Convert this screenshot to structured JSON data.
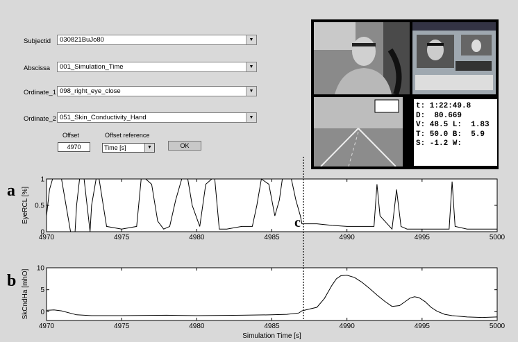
{
  "form": {
    "subjectid": {
      "label": "Subjectid",
      "value": "030821BuJo80"
    },
    "abscissa": {
      "label": "Abscissa",
      "value": "001_Simulation_Time"
    },
    "ordinate1": {
      "label": "Ordinate_1",
      "value": "098_right_eye_close"
    },
    "ordinate2": {
      "label": "Ordinate_2",
      "value": "051_Skin_Conductivity_Hand"
    },
    "offset_label": "Offset",
    "offset_value": "4970",
    "offset_reference_label": "Offset reference",
    "offset_reference_value": "Time [s]",
    "ok_label": "OK"
  },
  "video": {
    "hud_lines": [
      "t: 1:22:49.8",
      "D:  80.669",
      "V: 48.5 L:  1.83",
      "T: 50.0 B:  5.9",
      "S: -1.2 W:"
    ]
  },
  "panel_letters": {
    "a": "a",
    "b": "b",
    "c": "c"
  },
  "chart_data": [
    {
      "type": "line",
      "ylabel": "EyeRCL [%]",
      "xlim": [
        4970,
        5000
      ],
      "ylim": [
        0,
        1
      ],
      "yticks": [
        "0",
        "0.5",
        "1"
      ],
      "xticks": [
        "4970",
        "4975",
        "4980",
        "4985",
        "4990",
        "4995",
        "5000"
      ],
      "series": [
        {
          "x": [
            4970,
            4970.2,
            4970.4,
            4970.6,
            4971,
            4971.6,
            4971.9,
            4972,
            4972.2,
            4972.5,
            4972.9,
            4973,
            4973.3,
            4973.5,
            4974,
            4975,
            4976,
            4976.3,
            4976.6,
            4977,
            4977.4,
            4977.8,
            4978.2,
            4978.6,
            4979,
            4979.4,
            4979.7,
            4980.2,
            4980.6,
            4981,
            4981.2,
            4981.5,
            4982,
            4983,
            4983.7,
            4984,
            4984.3,
            4984.8,
            4985.2,
            4985.5,
            4985.7,
            4986,
            4986.3,
            4986.6,
            4986.9,
            4987,
            4988,
            4989,
            4990,
            4991,
            4991.8,
            4992,
            4992.2,
            4993,
            4993.3,
            4993.6,
            4994,
            4995,
            4996,
            4996.8,
            4997,
            4997.2,
            4998,
            4999,
            5000
          ],
          "y": [
            0.3,
            0.8,
            1,
            1,
            1,
            0,
            0,
            0.5,
            1,
            1,
            0,
            0.5,
            1,
            1,
            0.1,
            0.05,
            0.1,
            1,
            1,
            0.9,
            0.2,
            0.05,
            0.1,
            0.6,
            1,
            1,
            0.5,
            0.1,
            0.9,
            1,
            1,
            0.05,
            0.05,
            0.1,
            0.1,
            0.5,
            1,
            0.9,
            0.3,
            0.6,
            1,
            1,
            1,
            0.6,
            0.3,
            0.15,
            0.15,
            0.12,
            0.1,
            0.1,
            0.1,
            0.9,
            0.3,
            0.05,
            0.8,
            0.1,
            0.05,
            0.05,
            0.05,
            0.05,
            0.95,
            0.1,
            0.05,
            0.05,
            0.05
          ]
        }
      ]
    },
    {
      "type": "line",
      "ylabel": "SkCndHa [mhO]",
      "xlabel": "Simulation Time [s]",
      "xlim": [
        4970,
        5000
      ],
      "ylim": [
        -2,
        10
      ],
      "yticks": [
        "0",
        "5",
        "10"
      ],
      "xticks": [
        "4970",
        "4975",
        "4980",
        "4985",
        "4990",
        "4995",
        "5000"
      ],
      "series": [
        {
          "x": [
            4970,
            4970.5,
            4971,
            4972,
            4973,
            4975,
            4978,
            4980,
            4983,
            4985,
            4986,
            4986.8,
            4987,
            4987.5,
            4988,
            4988.5,
            4989,
            4989.3,
            4989.6,
            4990,
            4990.5,
            4991,
            4991.5,
            4992,
            4992.5,
            4993,
            4993.5,
            4994,
            4994.2,
            4994.5,
            4994.8,
            4995.2,
            4995.6,
            4996,
            4996.5,
            4997,
            4998,
            4999,
            5000
          ],
          "y": [
            0.3,
            0.4,
            0.2,
            -0.7,
            -0.9,
            -0.9,
            -0.8,
            -0.9,
            -0.8,
            -0.7,
            -0.6,
            -0.3,
            0.2,
            0.6,
            1,
            3,
            6,
            7.5,
            8.2,
            8.3,
            7.8,
            6.7,
            5.3,
            3.8,
            2.4,
            1.2,
            1.4,
            2.6,
            3.1,
            3.4,
            3.2,
            2.3,
            1,
            0.1,
            -0.6,
            -0.9,
            -1.2,
            -1.3,
            -1.2
          ]
        }
      ]
    }
  ]
}
